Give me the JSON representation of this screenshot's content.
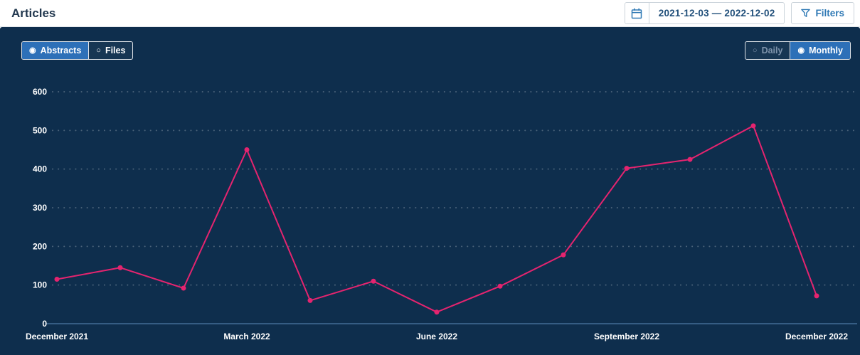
{
  "header": {
    "title": "Articles",
    "date_range": "2021-12-03 — 2022-12-02",
    "filters_label": "Filters"
  },
  "toggles": {
    "series": [
      {
        "label": "Abstracts",
        "selected": true,
        "icon": "◉"
      },
      {
        "label": "Files",
        "selected": false,
        "icon": "○"
      }
    ],
    "granularity": [
      {
        "label": "Daily",
        "selected": false,
        "icon": "○"
      },
      {
        "label": "Monthly",
        "selected": true,
        "icon": "◉"
      }
    ]
  },
  "colors": {
    "panel_bg": "#0e2e4d",
    "line": "#e5246f",
    "selected_toggle": "#2d70b8",
    "accent_blue": "#2f79b5",
    "date_text": "#1f4e79",
    "axis_line": "#4d7aa6"
  },
  "chart_data": {
    "type": "line",
    "title": "",
    "xlabel": "",
    "ylabel": "",
    "x": [
      "December 2021",
      "January 2022",
      "February 2022",
      "March 2022",
      "April 2022",
      "May 2022",
      "June 2022",
      "July 2022",
      "August 2022",
      "September 2022",
      "October 2022",
      "November 2022",
      "December 2022"
    ],
    "series": [
      {
        "name": "Abstracts",
        "values": [
          115,
          145,
          92,
          450,
          60,
          110,
          30,
          97,
          178,
          402,
          425,
          512,
          72
        ]
      }
    ],
    "x_tick_labels": [
      "December 2021",
      "March 2022",
      "June 2022",
      "September 2022",
      "December 2022"
    ],
    "y_ticks": [
      0,
      100,
      200,
      300,
      400,
      500,
      600
    ],
    "ylim": [
      0,
      600
    ],
    "grid": "horizontal-dotted",
    "legend": "none"
  }
}
